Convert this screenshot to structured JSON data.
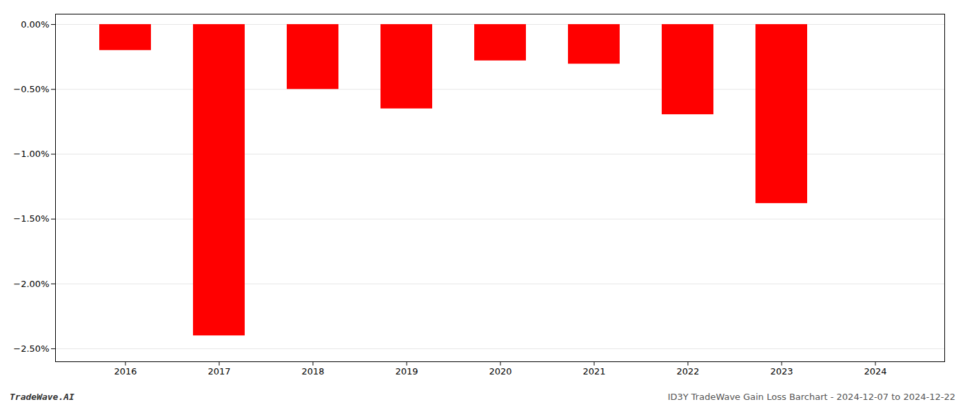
{
  "chart_data": {
    "type": "bar",
    "categories": [
      "2016",
      "2017",
      "2018",
      "2019",
      "2020",
      "2021",
      "2022",
      "2023",
      "2024"
    ],
    "values": [
      -0.2,
      -2.4,
      -0.5,
      -0.65,
      -0.28,
      -0.305,
      -0.695,
      -1.38,
      null
    ],
    "color": "#ff0000",
    "ylim": [
      -2.6,
      0.08
    ],
    "yticks": [
      {
        "value": 0.0,
        "label": "0.00%"
      },
      {
        "value": -0.5,
        "label": "−0.50%"
      },
      {
        "value": -1.0,
        "label": "−1.00%"
      },
      {
        "value": -1.5,
        "label": "−1.50%"
      },
      {
        "value": -2.0,
        "label": "−2.00%"
      },
      {
        "value": -2.5,
        "label": "−2.50%"
      }
    ],
    "grid": true,
    "annotations": [
      "TradeWave.AI",
      "ID3Y TradeWave Gain Loss Barchart - 2024-12-07 to 2024-12-22"
    ]
  }
}
